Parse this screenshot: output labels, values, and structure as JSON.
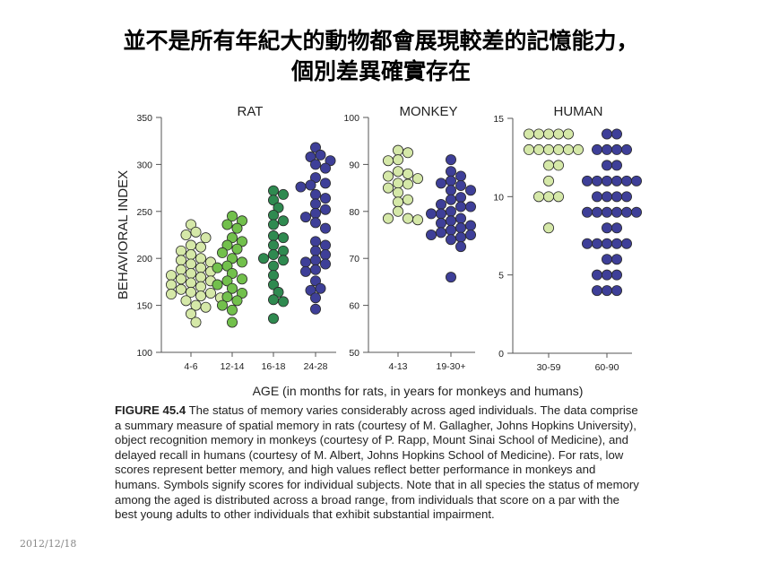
{
  "slide": {
    "title_line1": "並不是所有年紀大的動物都會展現較差的記憶能力，",
    "title_line2": "個別差異確實存在",
    "date": "2012/12/18"
  },
  "caption": {
    "label": "FIGURE 45.4",
    "lines": [
      " The status of memory varies considerably across aged individuals. The data comprise",
      "a summary measure of spatial memory in rats (courtesy of M. Gallagher, Johns Hopkins University),",
      "object recognition memory in monkeys (courtesy of P. Rapp, Mount Sinai School of Medicine), and",
      "delayed recall in humans (courtesy of M. Albert, Johns Hopkins School of Medicine). For rats, low",
      "scores represent better memory, and high values reflect better performance in monkeys and",
      "humans. Symbols signify scores for individual subjects. Note that in all species the status of memory",
      "among the aged is distributed across a broad range, from individuals that score on a par with the",
      "best young adults to other individuals that exhibit substantial impairment."
    ]
  },
  "chart_data": {
    "type": "scatter",
    "ylabel": "BEHAVIORAL INDEX",
    "xlabel": "AGE (in months for rats, in years for monkeys and humans)",
    "panels": [
      {
        "title": "RAT",
        "ylim": [
          100,
          350
        ],
        "yticks": [
          100,
          150,
          200,
          250,
          300,
          350
        ],
        "categories": [
          "4-6",
          "12-14",
          "16-18",
          "24-28"
        ],
        "series": [
          {
            "category": "4-6",
            "color": "#d5e8a8",
            "values": [
              236,
              228,
              225,
              222,
              214,
              212,
              208,
              204,
              200,
              198,
              196,
              194,
              190,
              188,
              186,
              184,
              182,
              180,
              178,
              176,
              174,
              172,
              170,
              167,
              164,
              163,
              162,
              160,
              158,
              155,
              150,
              148,
              141,
              132
            ]
          },
          {
            "category": "12-14",
            "color": "#72c04c",
            "values": [
              245,
              240,
              236,
              232,
              222,
              218,
              214,
              210,
              206,
              200,
              196,
              192,
              190,
              184,
              178,
              176,
              172,
              168,
              163,
              159,
              155,
              150,
              145,
              132
            ]
          },
          {
            "category": "16-18",
            "color": "#2f8a50",
            "values": [
              272,
              268,
              262,
              254,
              246,
              240,
              236,
              224,
              222,
              214,
              208,
              204,
              200,
              198,
              192,
              182,
              172,
              164,
              156,
              154,
              136
            ]
          },
          {
            "category": "24-28",
            "color": "#3e3f98",
            "values": [
              318,
              310,
              308,
              304,
              300,
              296,
              286,
              280,
              278,
              276,
              268,
              264,
              258,
              252,
              248,
              244,
              238,
              232,
              218,
              214,
              208,
              204,
              198,
              196,
              194,
              188,
              186,
              176,
              168,
              166,
              158,
              146
            ]
          }
        ]
      },
      {
        "title": "MONKEY",
        "ylim": [
          50,
          100
        ],
        "yticks": [
          50,
          60,
          70,
          80,
          90,
          100
        ],
        "categories": [
          "4-13",
          "19-30+"
        ],
        "series": [
          {
            "category": "4-13",
            "color": "#d5e8a8",
            "values": [
              93,
              92.5,
              91,
              90.8,
              88.5,
              88,
              87.5,
              87,
              86,
              85.8,
              85,
              84,
              82.5,
              82,
              80,
              78.5,
              78.5,
              78.2
            ]
          },
          {
            "category": "19-30+",
            "color": "#3e3f98",
            "values": [
              91,
              88.5,
              87.5,
              86.5,
              86,
              85.5,
              84.5,
              84.5,
              83,
              82.5,
              81.5,
              81,
              81,
              80,
              79.5,
              79.5,
              78.5,
              78,
              77.5,
              77,
              76.5,
              76,
              75.5,
              75,
              75,
              74.5,
              74,
              72.5,
              66
            ]
          }
        ]
      },
      {
        "title": "HUMAN",
        "ylim": [
          0,
          15
        ],
        "yticks": [
          0,
          5,
          10,
          15
        ],
        "categories": [
          "30-59",
          "60-90"
        ],
        "series": [
          {
            "category": "30-59",
            "color": "#d5e8a8",
            "values": [
              14,
              14,
              14,
              14,
              14,
              13,
              13,
              13,
              13,
              13,
              13,
              12,
              12,
              11,
              10,
              10,
              10,
              8
            ]
          },
          {
            "category": "60-90",
            "color": "#3e3f98",
            "values": [
              14,
              14,
              13,
              13,
              13,
              13,
              12,
              12,
              11,
              11,
              11,
              11,
              11,
              11,
              10,
              10,
              10,
              10,
              9,
              9,
              9,
              9,
              9,
              9,
              8,
              8,
              7,
              7,
              7,
              7,
              7,
              6,
              6,
              5,
              5,
              5,
              4,
              4,
              4
            ]
          }
        ]
      }
    ]
  }
}
